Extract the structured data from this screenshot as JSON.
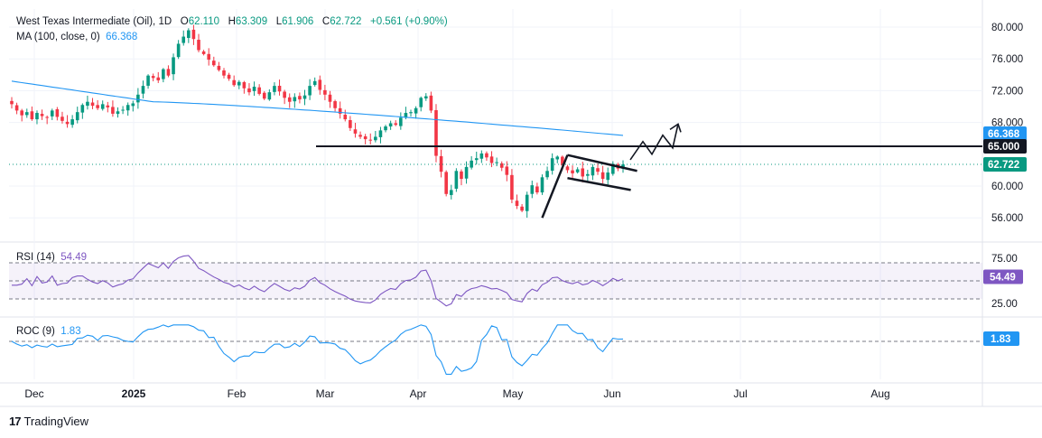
{
  "header": {
    "symbol": "West Texas Intermediate (Oil)",
    "interval": "1D",
    "open_label": "O",
    "open": "62.110",
    "high_label": "H",
    "high": "63.309",
    "low_label": "L",
    "low": "61.906",
    "close_label": "C",
    "close": "62.722",
    "change": "+0.561 (+0.90%)"
  },
  "ma_legend": {
    "label": "MA (100, close, 0)",
    "value": "66.368"
  },
  "rsi_legend": {
    "label": "RSI (14)",
    "value": "54.49"
  },
  "roc_legend": {
    "label": "ROC (9)",
    "value": "1.83"
  },
  "footer": {
    "brand": "TradingView",
    "logo": "17"
  },
  "colors": {
    "up": "#089981",
    "down": "#f23645",
    "ma": "#2196f3",
    "rsi": "#7e57c2",
    "roc": "#2196f3",
    "text": "#131722",
    "grid": "#f0f3fa"
  },
  "chart_data": [
    {
      "type": "candlestick",
      "title": "West Texas Intermediate (Oil), 1D",
      "y_ticks": [
        "80.000",
        "76.000",
        "72.000",
        "68.000",
        "60.000",
        "56.000"
      ],
      "ylim": [
        53.5,
        81
      ],
      "x_ticks": [
        "Dec",
        "2025",
        "Feb",
        "Mar",
        "Apr",
        "May",
        "Jun",
        "Jul",
        "Aug"
      ],
      "price_tags": [
        {
          "value": "66.368",
          "color": "#2196f3"
        },
        {
          "value": "65.000",
          "color": "#131722"
        },
        {
          "value": "62.722",
          "color": "#089981"
        }
      ],
      "horizontal_line": 65.0,
      "current_price": 62.722,
      "closes": [
        70.3,
        69.5,
        68.9,
        69.3,
        68.4,
        69.2,
        68.8,
        68.6,
        69.5,
        68.7,
        68.2,
        67.8,
        68.4,
        69.3,
        70.2,
        70.6,
        70.1,
        69.8,
        70.3,
        69.9,
        69.1,
        69.4,
        69.6,
        70.2,
        70.4,
        71.5,
        72.6,
        73.9,
        73.6,
        73.3,
        74.7,
        73.9,
        76.2,
        77.9,
        78.8,
        79.6,
        78.5,
        77.1,
        76.6,
        75.9,
        75.2,
        74.6,
        73.9,
        73.5,
        72.7,
        73.1,
        72.3,
        71.8,
        72.5,
        71.6,
        71.0,
        71.8,
        72.6,
        71.9,
        71.1,
        70.6,
        71.2,
        70.9,
        71.4,
        72.6,
        73.2,
        72.1,
        71.5,
        70.6,
        69.8,
        69.1,
        68.4,
        67.3,
        66.6,
        66.2,
        65.9,
        65.8,
        66.2,
        67.0,
        67.5,
        67.9,
        67.7,
        68.6,
        69.2,
        69.3,
        69.8,
        71.1,
        71.3,
        69.5,
        63.8,
        61.8,
        59.0,
        59.5,
        61.9,
        60.9,
        62.4,
        63.2,
        63.5,
        64.1,
        63.6,
        62.9,
        63.0,
        62.3,
        61.4,
        58.3,
        57.5,
        56.9,
        58.9,
        60.1,
        59.2,
        61.1,
        61.9,
        63.5,
        63.7,
        62.6,
        62.0,
        61.6,
        62.1,
        61.2,
        61.5,
        62.4,
        61.8,
        60.9,
        61.7,
        62.8,
        62.2,
        62.72
      ],
      "ma100": {
        "start": 73.2,
        "min_index": 28,
        "min_value": 70.6,
        "end": 66.37
      },
      "drawings": [
        {
          "kind": "rising-flagpole",
          "from": 56.0,
          "to": 63.9
        },
        {
          "kind": "flag-channel",
          "upper": [
            63.9,
            61.9
          ],
          "lower": [
            61.0,
            59.5
          ]
        },
        {
          "kind": "projected-path",
          "target": 67.8
        }
      ]
    },
    {
      "type": "line",
      "title": "RSI (14)",
      "y_ticks": [
        "75.00",
        "25.00"
      ],
      "ylim": [
        20,
        80
      ],
      "levels": [
        70,
        50,
        30
      ],
      "last": "54.49"
    },
    {
      "type": "line",
      "title": "ROC (9)",
      "last": "1.83",
      "zero_line": 0
    }
  ]
}
